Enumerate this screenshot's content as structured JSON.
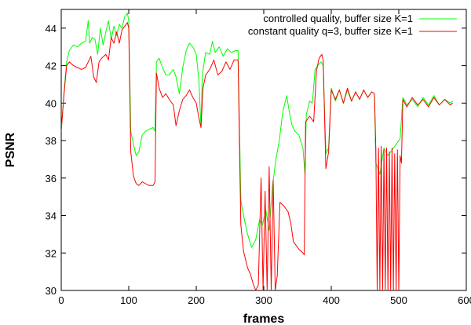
{
  "chart_data": {
    "type": "line",
    "title": "",
    "xlabel": "frames",
    "ylabel": "PSNR",
    "xlim": [
      0,
      600
    ],
    "ylim": [
      30,
      45
    ],
    "xticks": [
      0,
      100,
      200,
      300,
      400,
      500,
      600
    ],
    "yticks": [
      30,
      32,
      34,
      36,
      38,
      40,
      42,
      44
    ],
    "grid": false,
    "legend_position": "top-right",
    "series": [
      {
        "name": "controlled quality, buffer size K=1",
        "color": "#00ff00",
        "points": [
          [
            0,
            38.5
          ],
          [
            4,
            40.5
          ],
          [
            8,
            42.2
          ],
          [
            12,
            42.8
          ],
          [
            18,
            43.1
          ],
          [
            24,
            43.0
          ],
          [
            30,
            43.2
          ],
          [
            36,
            43.3
          ],
          [
            40,
            44.4
          ],
          [
            42,
            43.2
          ],
          [
            46,
            43.5
          ],
          [
            50,
            43.4
          ],
          [
            54,
            42.6
          ],
          [
            58,
            44.0
          ],
          [
            62,
            43.1
          ],
          [
            66,
            43.8
          ],
          [
            70,
            44.4
          ],
          [
            74,
            43.4
          ],
          [
            78,
            44.1
          ],
          [
            82,
            43.6
          ],
          [
            86,
            44.2
          ],
          [
            90,
            44.0
          ],
          [
            94,
            44.6
          ],
          [
            98,
            44.8
          ],
          [
            100,
            44.4
          ],
          [
            103,
            38.5
          ],
          [
            107,
            37.8
          ],
          [
            111,
            37.2
          ],
          [
            115,
            37.4
          ],
          [
            120,
            38.3
          ],
          [
            125,
            38.5
          ],
          [
            130,
            38.6
          ],
          [
            136,
            38.7
          ],
          [
            139,
            38.5
          ],
          [
            141,
            42.2
          ],
          [
            145,
            42.4
          ],
          [
            150,
            41.9
          ],
          [
            155,
            41.5
          ],
          [
            160,
            41.5
          ],
          [
            166,
            41.8
          ],
          [
            170,
            41.4
          ],
          [
            175,
            40.5
          ],
          [
            180,
            41.9
          ],
          [
            185,
            42.8
          ],
          [
            190,
            43.2
          ],
          [
            195,
            43.0
          ],
          [
            200,
            42.6
          ],
          [
            204,
            41.2
          ],
          [
            207,
            38.7
          ],
          [
            209,
            41.5
          ],
          [
            214,
            42.7
          ],
          [
            220,
            42.6
          ],
          [
            224,
            43.3
          ],
          [
            228,
            42.7
          ],
          [
            234,
            43.0
          ],
          [
            240,
            42.5
          ],
          [
            246,
            42.9
          ],
          [
            252,
            42.7
          ],
          [
            258,
            42.8
          ],
          [
            262,
            42.8
          ],
          [
            266,
            34.8
          ],
          [
            270,
            34.0
          ],
          [
            276,
            33.0
          ],
          [
            282,
            32.3
          ],
          [
            288,
            32.7
          ],
          [
            294,
            33.8
          ],
          [
            298,
            33.5
          ],
          [
            303,
            34.3
          ],
          [
            308,
            33.2
          ],
          [
            313,
            35.6
          ],
          [
            318,
            37.0
          ],
          [
            323,
            38.0
          ],
          [
            328,
            39.5
          ],
          [
            334,
            40.4
          ],
          [
            338,
            39.5
          ],
          [
            342,
            38.8
          ],
          [
            346,
            38.5
          ],
          [
            352,
            38.3
          ],
          [
            358,
            37.6
          ],
          [
            361,
            36.2
          ],
          [
            363,
            39.4
          ],
          [
            368,
            40.1
          ],
          [
            372,
            40.0
          ],
          [
            376,
            41.8
          ],
          [
            380,
            42.0
          ],
          [
            385,
            42.2
          ],
          [
            388,
            42.0
          ],
          [
            392,
            37.3
          ],
          [
            396,
            37.6
          ],
          [
            400,
            40.8
          ],
          [
            406,
            40.1
          ],
          [
            412,
            40.7
          ],
          [
            418,
            40.0
          ],
          [
            424,
            40.7
          ],
          [
            430,
            40.1
          ],
          [
            436,
            40.6
          ],
          [
            442,
            40.2
          ],
          [
            448,
            40.7
          ],
          [
            454,
            40.3
          ],
          [
            460,
            40.6
          ],
          [
            464,
            40.5
          ],
          [
            466,
            36.8
          ],
          [
            472,
            36.2
          ],
          [
            478,
            37.6
          ],
          [
            484,
            37.2
          ],
          [
            490,
            37.5
          ],
          [
            496,
            37.8
          ],
          [
            502,
            38.1
          ],
          [
            506,
            40.3
          ],
          [
            512,
            39.9
          ],
          [
            520,
            40.2
          ],
          [
            528,
            39.8
          ],
          [
            536,
            40.3
          ],
          [
            544,
            39.9
          ],
          [
            552,
            40.4
          ],
          [
            560,
            39.9
          ],
          [
            568,
            40.2
          ],
          [
            576,
            40.0
          ],
          [
            580,
            40.1
          ]
        ]
      },
      {
        "name": "constant quality q=3, buffer size K=1",
        "color": "#ff0000",
        "points": [
          [
            0,
            38.5
          ],
          [
            4,
            40.4
          ],
          [
            8,
            42.0
          ],
          [
            12,
            42.2
          ],
          [
            18,
            42.0
          ],
          [
            24,
            41.9
          ],
          [
            30,
            41.8
          ],
          [
            36,
            41.9
          ],
          [
            40,
            42.2
          ],
          [
            44,
            42.5
          ],
          [
            48,
            41.4
          ],
          [
            52,
            41.1
          ],
          [
            56,
            42.2
          ],
          [
            60,
            42.4
          ],
          [
            66,
            42.6
          ],
          [
            70,
            42.3
          ],
          [
            74,
            43.5
          ],
          [
            78,
            43.2
          ],
          [
            82,
            43.8
          ],
          [
            86,
            43.2
          ],
          [
            90,
            43.9
          ],
          [
            94,
            44.1
          ],
          [
            98,
            44.3
          ],
          [
            100,
            44.0
          ],
          [
            103,
            37.4
          ],
          [
            107,
            36.1
          ],
          [
            111,
            35.7
          ],
          [
            115,
            35.6
          ],
          [
            120,
            35.8
          ],
          [
            125,
            35.7
          ],
          [
            130,
            35.6
          ],
          [
            136,
            35.6
          ],
          [
            139,
            35.8
          ],
          [
            141,
            41.6
          ],
          [
            145,
            40.8
          ],
          [
            150,
            40.3
          ],
          [
            155,
            40.5
          ],
          [
            160,
            40.2
          ],
          [
            166,
            39.9
          ],
          [
            170,
            38.8
          ],
          [
            175,
            39.6
          ],
          [
            180,
            40.2
          ],
          [
            185,
            40.4
          ],
          [
            190,
            40.7
          ],
          [
            195,
            40.3
          ],
          [
            200,
            40.0
          ],
          [
            204,
            39.2
          ],
          [
            207,
            38.7
          ],
          [
            210,
            40.8
          ],
          [
            214,
            41.5
          ],
          [
            220,
            41.8
          ],
          [
            226,
            42.3
          ],
          [
            232,
            41.5
          ],
          [
            238,
            41.7
          ],
          [
            244,
            42.2
          ],
          [
            250,
            41.8
          ],
          [
            256,
            42.3
          ],
          [
            262,
            42.3
          ],
          [
            266,
            33.5
          ],
          [
            270,
            32.1
          ],
          [
            276,
            31.2
          ],
          [
            280,
            30.9
          ],
          [
            284,
            30.4
          ],
          [
            288,
            30.0
          ],
          [
            292,
            30.3
          ],
          [
            296,
            36.0
          ],
          [
            299,
            30.0
          ],
          [
            302,
            35.3
          ],
          [
            305,
            30.0
          ],
          [
            308,
            36.6
          ],
          [
            311,
            30.0
          ],
          [
            314,
            35.9
          ],
          [
            317,
            30.0
          ],
          [
            320,
            30.8
          ],
          [
            324,
            34.7
          ],
          [
            330,
            34.5
          ],
          [
            336,
            34.2
          ],
          [
            340,
            33.6
          ],
          [
            344,
            32.6
          ],
          [
            348,
            32.4
          ],
          [
            352,
            32.2
          ],
          [
            358,
            32.0
          ],
          [
            360,
            31.9
          ],
          [
            362,
            39.0
          ],
          [
            368,
            39.3
          ],
          [
            374,
            39.0
          ],
          [
            378,
            41.7
          ],
          [
            382,
            42.4
          ],
          [
            386,
            42.6
          ],
          [
            388,
            42.3
          ],
          [
            392,
            36.5
          ],
          [
            396,
            37.4
          ],
          [
            400,
            40.7
          ],
          [
            406,
            40.2
          ],
          [
            412,
            40.7
          ],
          [
            418,
            40.0
          ],
          [
            424,
            40.8
          ],
          [
            430,
            40.1
          ],
          [
            436,
            40.6
          ],
          [
            442,
            40.2
          ],
          [
            448,
            40.7
          ],
          [
            454,
            40.3
          ],
          [
            460,
            40.6
          ],
          [
            464,
            40.5
          ],
          [
            466,
            37.5
          ],
          [
            468,
            30.0
          ],
          [
            470,
            37.6
          ],
          [
            472,
            30.0
          ],
          [
            474,
            37.7
          ],
          [
            476,
            30.0
          ],
          [
            478,
            37.5
          ],
          [
            480,
            30.0
          ],
          [
            482,
            37.6
          ],
          [
            484,
            30.0
          ],
          [
            486,
            37.4
          ],
          [
            488,
            30.0
          ],
          [
            490,
            37.6
          ],
          [
            492,
            30.0
          ],
          [
            494,
            37.3
          ],
          [
            496,
            30.0
          ],
          [
            498,
            37.5
          ],
          [
            500,
            30.0
          ],
          [
            502,
            37.2
          ],
          [
            504,
            36.8
          ],
          [
            506,
            40.2
          ],
          [
            512,
            39.8
          ],
          [
            520,
            40.3
          ],
          [
            528,
            39.9
          ],
          [
            536,
            40.2
          ],
          [
            544,
            39.8
          ],
          [
            552,
            40.3
          ],
          [
            560,
            39.9
          ],
          [
            568,
            40.2
          ],
          [
            576,
            39.9
          ],
          [
            580,
            40.0
          ]
        ]
      }
    ]
  }
}
